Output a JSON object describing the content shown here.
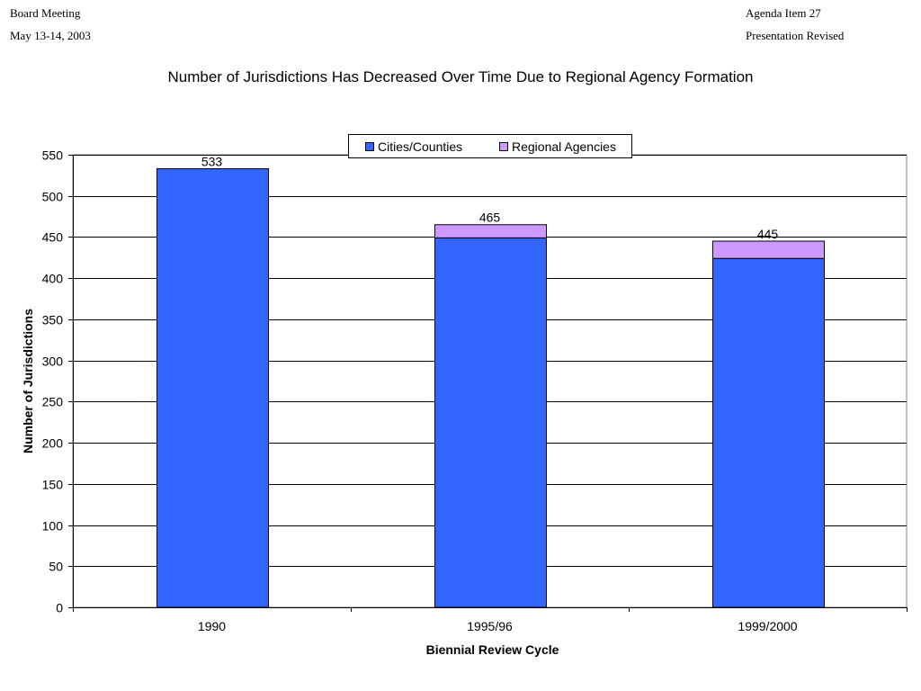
{
  "header": {
    "left_line1": "Board Meeting",
    "left_line2": "May 13-14, 2003",
    "right_line1": "Agenda Item 27",
    "right_line2": "Presentation Revised"
  },
  "chart_data": {
    "type": "bar",
    "stacked": true,
    "title": "Number of Jurisdictions Has Decreased Over Time Due to Regional Agency Formation",
    "xlabel": "Biennial Review Cycle",
    "ylabel": "Number of Jurisdictions",
    "categories": [
      "1990",
      "1995/96",
      "1999/2000"
    ],
    "series": [
      {
        "name": "Cities/Counties",
        "values": [
          533,
          449,
          424
        ],
        "color": "#3366FF"
      },
      {
        "name": "Regional Agencies",
        "values": [
          0,
          16,
          21
        ],
        "color": "#CC99FF"
      }
    ],
    "totals": [
      533,
      465,
      445
    ],
    "total_labels": [
      "533",
      "465",
      "445"
    ],
    "ylim": [
      0,
      550
    ],
    "yticks": [
      0,
      50,
      100,
      150,
      200,
      250,
      300,
      350,
      400,
      450,
      500,
      550
    ],
    "grid": true,
    "legend_position": "top-center"
  }
}
